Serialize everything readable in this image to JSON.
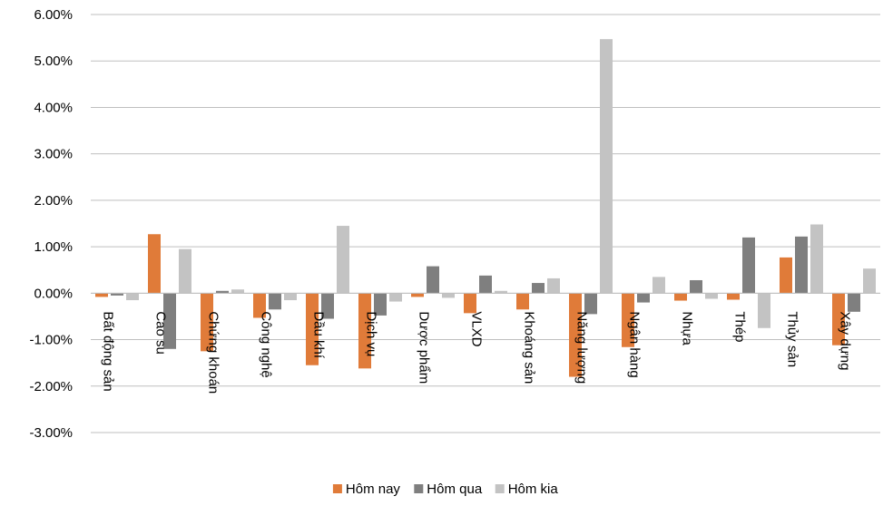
{
  "colors": {
    "gridline": "#bfbfbf",
    "text": "#000000"
  },
  "chart_data": {
    "type": "bar",
    "categories": [
      "Bất động sản",
      "Cao su",
      "Chứng khoán",
      "Công nghệ",
      "Dầu khí",
      "Dịch vụ",
      "Dược phẩm",
      "VLXD",
      "Khoáng sản",
      "Năng lượng",
      "Ngân hàng",
      "Nhựa",
      "Thép",
      "Thủy sản",
      "Xây dựng"
    ],
    "series": [
      {
        "name": "Hôm nay",
        "color": "#e07b39",
        "values": [
          -0.08,
          1.27,
          -1.25,
          -0.53,
          -1.55,
          -1.62,
          -0.08,
          -0.43,
          -0.35,
          -1.8,
          -1.16,
          -0.16,
          -0.14,
          0.77,
          -1.12
        ]
      },
      {
        "name": "Hôm qua",
        "color": "#7f7f7f",
        "values": [
          -0.05,
          -1.2,
          0.05,
          -0.35,
          -0.55,
          -0.48,
          0.58,
          0.38,
          0.22,
          -0.45,
          -0.2,
          0.28,
          1.2,
          1.22,
          -0.4
        ]
      },
      {
        "name": "Hôm kia",
        "color": "#c3c3c3",
        "values": [
          -0.15,
          0.95,
          0.08,
          -0.15,
          1.45,
          -0.18,
          -0.1,
          0.05,
          0.32,
          5.47,
          0.35,
          -0.12,
          -0.75,
          1.48,
          0.53
        ]
      }
    ],
    "ylim": [
      -3,
      6
    ],
    "yticks": [
      "-3.00%",
      "-2.00%",
      "-1.00%",
      "0.00%",
      "1.00%",
      "2.00%",
      "3.00%",
      "4.00%",
      "5.00%",
      "6.00%"
    ],
    "grid": true,
    "legend": "bottom"
  }
}
